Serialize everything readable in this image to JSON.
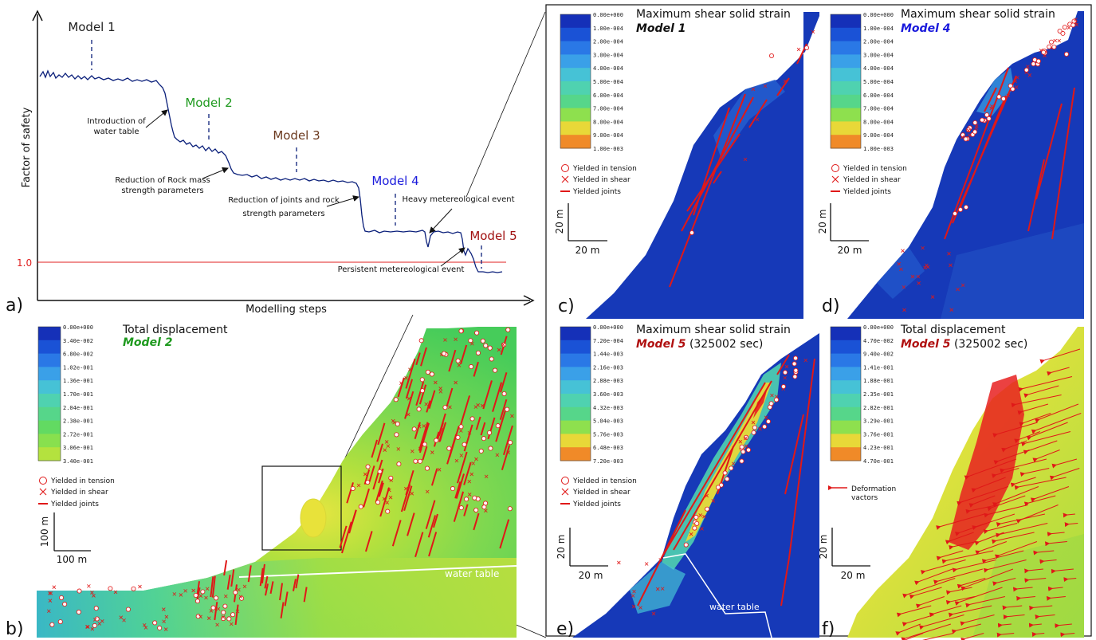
{
  "top_chart": {
    "ylabel": "Factor of safety",
    "xlabel": "Modelling steps",
    "fs_label": "1.0",
    "panel_letter": "a)",
    "models": [
      {
        "label": "Model 1",
        "color": "#222222"
      },
      {
        "label": "Model 2",
        "color": "#1f9a1f"
      },
      {
        "label": "Model 3",
        "color": "#6b3a1f"
      },
      {
        "label": "Model 4",
        "color": "#1a1adc"
      },
      {
        "label": "Model 5",
        "color": "#a01010"
      }
    ],
    "annotations": [
      "Introduction of",
      "water table",
      "Reduction of Rock mass",
      "strength parameters",
      "Reduction of joints and rock",
      "strength parameters",
      "Heavy metereological event",
      "Persistent metereological event"
    ]
  },
  "legend_common": {
    "tension": "Yielded in tension",
    "shear": "Yielded in shear",
    "joints": "Yielded joints",
    "vectors_1": "Deformation",
    "vectors_2": "vactors"
  },
  "scale_20": "20 m",
  "scale_100": "100 m",
  "water_table": "water table",
  "panels": {
    "b": {
      "letter": "b)",
      "title": "Total displacement",
      "model": "Model 2",
      "model_color": "#1f9a1f",
      "suffix": "",
      "scale": [
        "0.00e+000",
        "3.40e-002",
        "6.80e-002",
        "1.02e-001",
        "1.36e-001",
        "1.70e-001",
        "2.04e-001",
        "2.38e-001",
        "2.72e-001",
        "3.06e-001",
        "3.40e-001"
      ],
      "colors": [
        "#1530b8",
        "#1a52d6",
        "#2a78e6",
        "#3aa0e8",
        "#46c2d6",
        "#4fd2b0",
        "#56d68a",
        "#62da62",
        "#88e04e",
        "#b4e23e",
        "#e8e838"
      ]
    },
    "c": {
      "letter": "c)",
      "title": "Maximum shear solid strain",
      "model": "Model 1",
      "model_color": "#111111",
      "suffix": "",
      "scale": [
        "0.00e+000",
        "1.00e-004",
        "2.00e-004",
        "3.00e-004",
        "4.00e-004",
        "5.00e-004",
        "6.00e-004",
        "7.00e-004",
        "8.00e-004",
        "9.00e-004",
        "1.00e-003"
      ],
      "colors": [
        "#1530b8",
        "#1a52d6",
        "#2a78e6",
        "#3aa0e8",
        "#46c2d6",
        "#4fd2b0",
        "#56d68a",
        "#8ee04e",
        "#e8d838",
        "#f08a28",
        "#e82020"
      ]
    },
    "d": {
      "letter": "d)",
      "title": "Maximum shear solid strain",
      "model": "Model 4",
      "model_color": "#1a1adc",
      "suffix": "",
      "scale": [
        "0.00e+000",
        "1.00e-004",
        "2.00e-004",
        "3.00e-004",
        "4.00e-004",
        "5.00e-004",
        "6.00e-004",
        "7.00e-004",
        "8.00e-004",
        "9.00e-004",
        "1.00e-003"
      ],
      "colors": [
        "#1530b8",
        "#1a52d6",
        "#2a78e6",
        "#3aa0e8",
        "#46c2d6",
        "#4fd2b0",
        "#56d68a",
        "#8ee04e",
        "#e8d838",
        "#f08a28",
        "#e82020"
      ]
    },
    "e": {
      "letter": "e)",
      "title": "Maximum shear solid strain",
      "model": "Model 5",
      "model_color": "#b01010",
      "suffix": "(325002 sec)",
      "scale": [
        "0.00e+000",
        "7.20e-004",
        "1.44e-003",
        "2.16e-003",
        "2.88e-003",
        "3.60e-003",
        "4.32e-003",
        "5.04e-003",
        "5.76e-003",
        "6.48e-003",
        "7.20e-003"
      ],
      "colors": [
        "#1530b8",
        "#1a52d6",
        "#2a78e6",
        "#3aa0e8",
        "#46c2d6",
        "#4fd2b0",
        "#56d68a",
        "#8ee04e",
        "#e8d838",
        "#f08a28",
        "#e82020"
      ]
    },
    "f": {
      "letter": "f)",
      "title": "Total displacement",
      "model": "Model 5",
      "model_color": "#b01010",
      "suffix": "(325002 sec)",
      "scale": [
        "0.00e+000",
        "4.70e-002",
        "9.40e-002",
        "1.41e-001",
        "1.88e-001",
        "2.35e-001",
        "2.82e-001",
        "3.29e-001",
        "3.76e-001",
        "4.23e-001",
        "4.70e-001"
      ],
      "colors": [
        "#1530b8",
        "#1a52d6",
        "#2a78e6",
        "#3aa0e8",
        "#46c2d6",
        "#4fd2b0",
        "#56d68a",
        "#8ee04e",
        "#e8d838",
        "#f08a28",
        "#e82020"
      ]
    }
  }
}
